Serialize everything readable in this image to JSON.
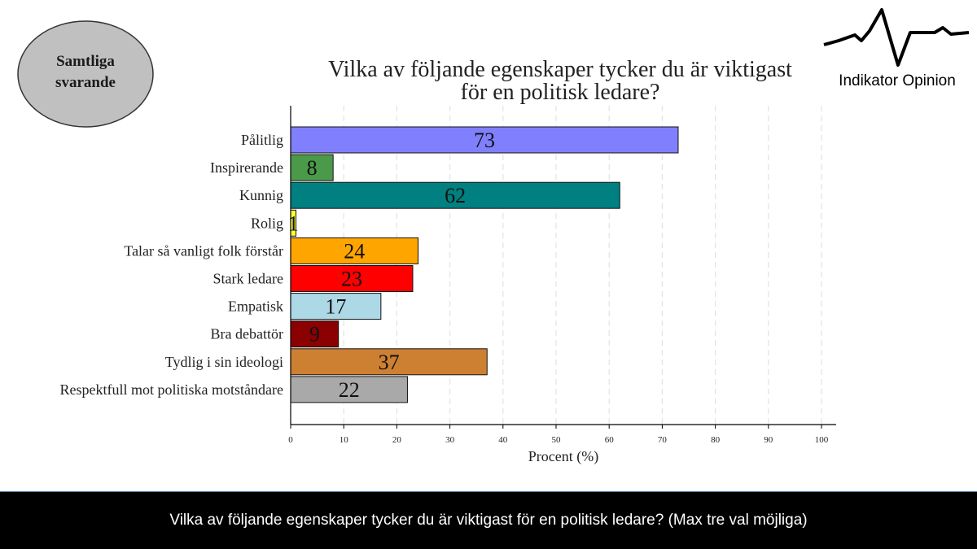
{
  "badge": {
    "line1": "Samtliga",
    "line2": "svarande"
  },
  "logo": {
    "text": "Indikator Opinion"
  },
  "footer": {
    "text": "Vilka av följande egenskaper tycker du är viktigast för en politisk ledare? (Max tre val möjliga)"
  },
  "chart_data": {
    "type": "bar",
    "orientation": "horizontal",
    "title_lines": [
      "Vilka av följande egenskaper tycker du är viktigast",
      "för en politisk ledare?"
    ],
    "xlabel": "Procent (%)",
    "ylabel": "",
    "xlim": [
      0,
      100
    ],
    "x_ticks": [
      0,
      10,
      20,
      30,
      40,
      50,
      60,
      70,
      80,
      90,
      100
    ],
    "grid": "vertical dashed",
    "categories": [
      "Pålitlig",
      "Inspirerande",
      "Kunnig",
      "Rolig",
      "Talar så vanligt folk förstår",
      "Stark ledare",
      "Empatisk",
      "Bra debattör",
      "Tydlig i sin ideologi",
      "Respektfull mot politiska motståndare"
    ],
    "values": [
      73,
      8,
      62,
      1,
      24,
      23,
      17,
      9,
      37,
      22
    ],
    "colors": [
      "#8080ff",
      "#4a9a4a",
      "#008080",
      "#ffff33",
      "#ffa500",
      "#ff0000",
      "#add8e6",
      "#8b0000",
      "#cd7f32",
      "#a9a9a9"
    ]
  }
}
